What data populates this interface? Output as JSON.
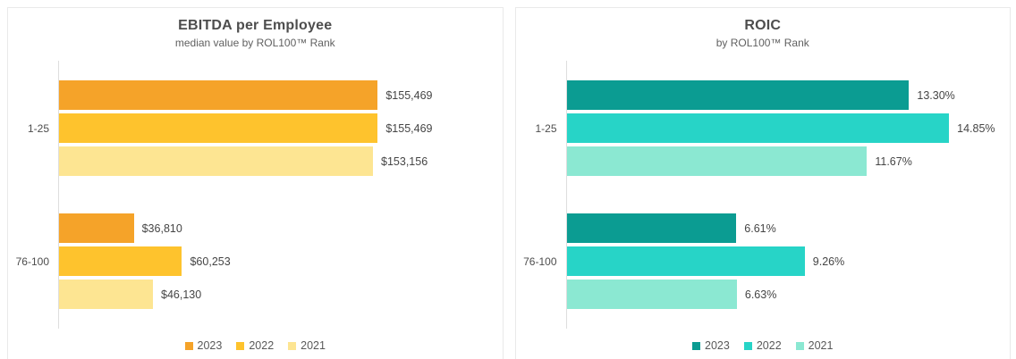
{
  "chart_data": [
    {
      "type": "bar",
      "orientation": "horizontal",
      "title": "EBITDA per Employee",
      "subtitle": "median value by ROL100™ Rank",
      "categories": [
        "1-25",
        "76-100"
      ],
      "series": [
        {
          "name": "2023",
          "color": "#F5A329",
          "values": [
            155469,
            36810
          ],
          "labels": [
            "$155,469",
            "$36,810"
          ]
        },
        {
          "name": "2022",
          "color": "#FEC32D",
          "values": [
            155469,
            60253
          ],
          "labels": [
            "$155,469",
            "$60,253"
          ]
        },
        {
          "name": "2021",
          "color": "#FDE592",
          "values": [
            153156,
            46130
          ],
          "labels": [
            "$153,156",
            "$46,130"
          ]
        }
      ],
      "value_format": "USD currency",
      "axis_max": 216000,
      "grid": false,
      "legend_position": "bottom"
    },
    {
      "type": "bar",
      "orientation": "horizontal",
      "title": "ROIC",
      "subtitle": "by ROL100™ Rank",
      "categories": [
        "1-25",
        "76-100"
      ],
      "series": [
        {
          "name": "2023",
          "color": "#0B9C92",
          "values": [
            13.3,
            6.61
          ],
          "labels": [
            "13.30%",
            "6.61%"
          ]
        },
        {
          "name": "2022",
          "color": "#27D4C7",
          "values": [
            14.85,
            9.26
          ],
          "labels": [
            "14.85%",
            "9.26%"
          ]
        },
        {
          "name": "2021",
          "color": "#8BE8D2",
          "values": [
            11.67,
            6.63
          ],
          "labels": [
            "11.67%",
            "6.63%"
          ]
        }
      ],
      "value_format": "percent",
      "axis_max": 17.2,
      "grid": false,
      "legend_position": "bottom"
    }
  ],
  "style_colors": {
    "card_border": "#e9e9e9",
    "axis_line": "#dedede",
    "title_text": "#4d4d4d",
    "value_text": "#454545"
  }
}
